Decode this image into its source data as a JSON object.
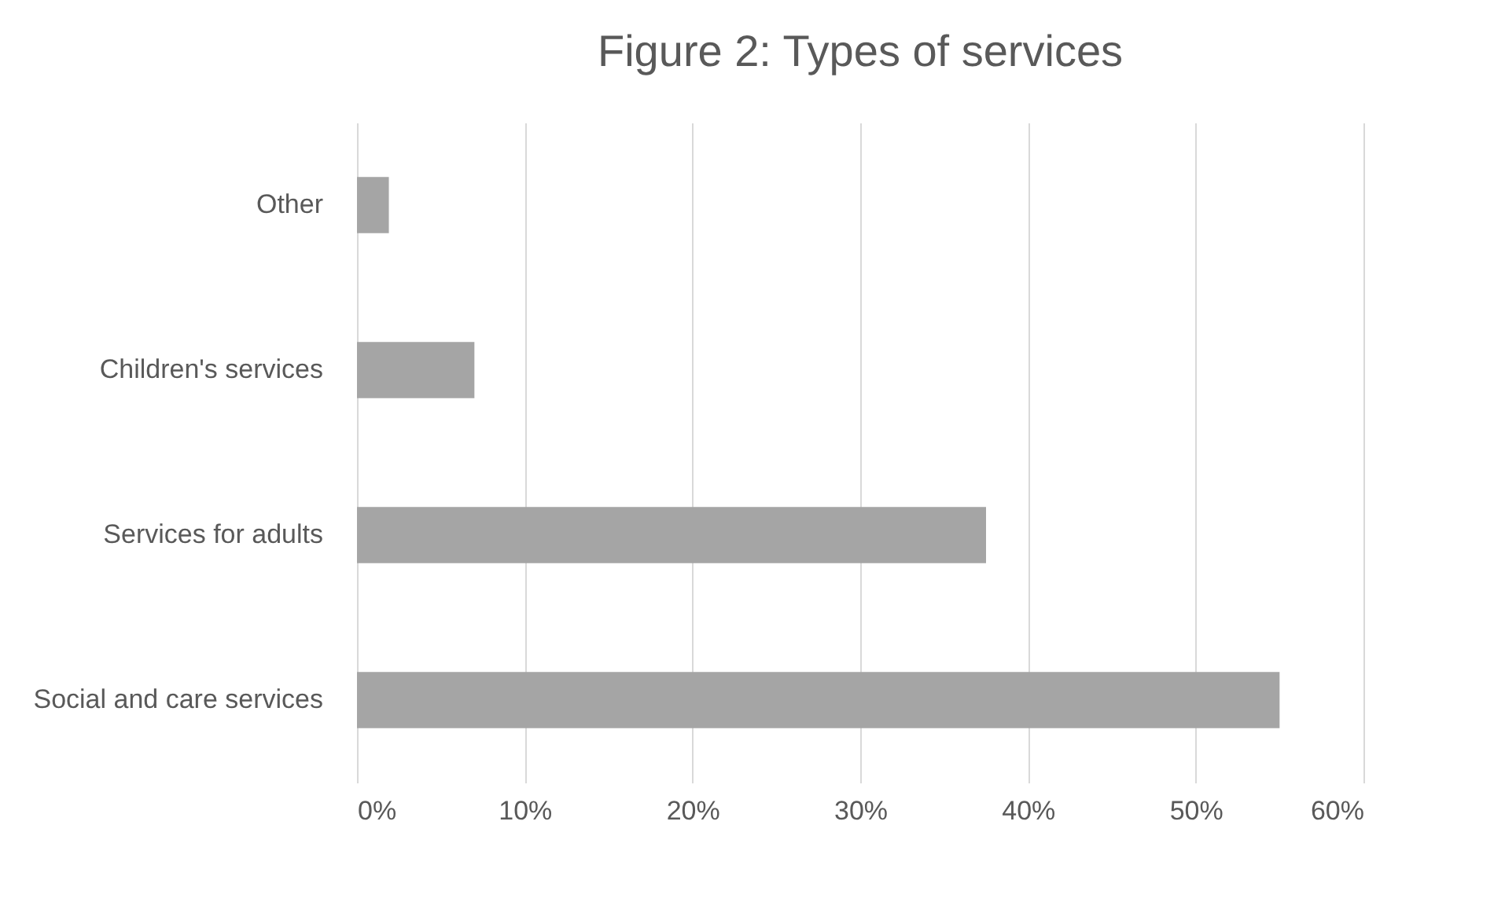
{
  "chart_data": {
    "type": "bar",
    "orientation": "horizontal",
    "title": "Figure 2: Types of services",
    "categories": [
      "Other",
      "Children's services",
      "Services for adults",
      "Social and care services"
    ],
    "values": [
      1.9,
      7,
      37.5,
      55
    ],
    "color": "#a5a5a5",
    "xlim": [
      0,
      60
    ],
    "xticks": [
      {
        "value": 0,
        "label": "0%"
      },
      {
        "value": 10,
        "label": "10%"
      },
      {
        "value": 20,
        "label": "20%"
      },
      {
        "value": 30,
        "label": "30%"
      },
      {
        "value": 40,
        "label": "40%"
      },
      {
        "value": 50,
        "label": "50%"
      },
      {
        "value": 60,
        "label": "60%"
      }
    ],
    "grid": "x"
  }
}
